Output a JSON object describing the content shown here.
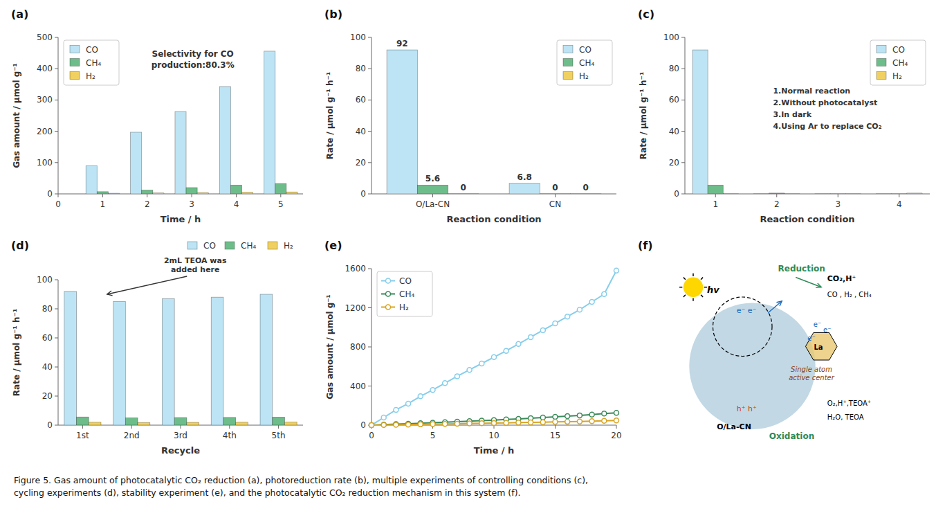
{
  "chart_data": [
    {
      "type": "bar",
      "title": "(a)",
      "xlabel": "Time / h",
      "ylabel": "Gas amount / μmol g⁻¹",
      "x": [
        1,
        2,
        3,
        4,
        5
      ],
      "xlim": [
        0,
        5.5
      ],
      "xticks": [
        0,
        1,
        2,
        3,
        4,
        5
      ],
      "ylim": [
        0,
        500
      ],
      "yticks": [
        0,
        100,
        200,
        300,
        400,
        500
      ],
      "series": [
        {
          "name": "CO",
          "color": "#BDE4F4",
          "values": [
            90,
            197,
            263,
            343,
            456
          ]
        },
        {
          "name": "CH₄",
          "color": "#6DBD8A",
          "values": [
            7,
            12,
            20,
            28,
            33
          ]
        },
        {
          "name": "H₂",
          "color": "#F0D060",
          "values": [
            2,
            3,
            4,
            5,
            6
          ]
        }
      ],
      "legend": "upper left",
      "grid": false,
      "annotations": [
        "Selectivity for CO\nproduction:80.3%"
      ]
    },
    {
      "type": "bar",
      "title": "(b)",
      "xlabel": "Reaction condition",
      "ylabel": "Rate / μmol g⁻¹ h⁻¹",
      "categories": [
        "O/La-CN",
        "CN"
      ],
      "ylim": [
        0,
        100
      ],
      "yticks": [
        0,
        20,
        40,
        60,
        80,
        100
      ],
      "series": [
        {
          "name": "CO",
          "color": "#BDE4F4",
          "values": [
            92,
            6.8
          ]
        },
        {
          "name": "CH₄",
          "color": "#6DBD8A",
          "values": [
            5.6,
            0
          ]
        },
        {
          "name": "H₂",
          "color": "#F0D060",
          "values": [
            0,
            0
          ]
        }
      ],
      "legend": "upper right",
      "grid": false,
      "data_labels": true
    },
    {
      "type": "bar",
      "title": "(c)",
      "xlabel": "Reaction condition",
      "ylabel": "Rate / μmol g⁻¹ h⁻¹",
      "categories": [
        "1",
        "2",
        "3",
        "4"
      ],
      "ylim": [
        0,
        100
      ],
      "yticks": [
        0,
        20,
        40,
        60,
        80,
        100
      ],
      "series": [
        {
          "name": "CO",
          "color": "#BDE4F4",
          "values": [
            92,
            0,
            0,
            0
          ]
        },
        {
          "name": "CH₄",
          "color": "#6DBD8A",
          "values": [
            5.6,
            0.5,
            0,
            0
          ]
        },
        {
          "name": "H₂",
          "color": "#F0D060",
          "values": [
            0,
            0,
            0,
            0.5
          ]
        }
      ],
      "legend": "upper right",
      "grid": false,
      "annotations": [
        "1.Normal reaction",
        "2.Without photocatalyst",
        "3.In dark",
        "4.Using Ar to replace CO₂"
      ]
    },
    {
      "type": "bar",
      "title": "(d)",
      "xlabel": "Recycle",
      "ylabel": "Rate / μmol g⁻¹ h⁻¹",
      "categories": [
        "1st",
        "2nd",
        "3rd",
        "4th",
        "5th"
      ],
      "ylim": [
        0,
        100
      ],
      "yticks": [
        0,
        20,
        40,
        60,
        80,
        100
      ],
      "series": [
        {
          "name": "CO",
          "color": "#BDE4F4",
          "values": [
            92,
            85,
            87,
            88,
            90
          ]
        },
        {
          "name": "CH₄",
          "color": "#6DBD8A",
          "values": [
            5.6,
            5,
            5.2,
            5.3,
            5.5
          ]
        },
        {
          "name": "H₂",
          "color": "#F0D060",
          "values": [
            2,
            1.8,
            1.9,
            2,
            2.1
          ]
        }
      ],
      "legend": "top",
      "grid": false,
      "annotations": [
        "2mL TEOA was\nadded here"
      ]
    },
    {
      "type": "line",
      "title": "(e)",
      "xlabel": "Time / h",
      "ylabel": "Gas amount / μmol g⁻¹",
      "x": [
        0,
        1,
        2,
        3,
        4,
        5,
        6,
        7,
        8,
        9,
        10,
        11,
        12,
        13,
        14,
        15,
        16,
        17,
        18,
        19,
        20
      ],
      "xlim": [
        0,
        20
      ],
      "xticks": [
        0,
        5,
        10,
        15,
        20
      ],
      "ylim": [
        0,
        1600
      ],
      "yticks": [
        0,
        400,
        800,
        1200,
        1600
      ],
      "series": [
        {
          "name": "CO",
          "color": "#87CEEB",
          "marker": "circle",
          "values": [
            0,
            78,
            156,
            220,
            295,
            360,
            430,
            500,
            565,
            630,
            695,
            760,
            830,
            900,
            970,
            1040,
            1110,
            1180,
            1260,
            1340,
            1580
          ]
        },
        {
          "name": "CH₄",
          "color": "#3A8A5A",
          "marker": "circle",
          "values": [
            0,
            5,
            10,
            15,
            20,
            25,
            30,
            35,
            40,
            46,
            52,
            58,
            64,
            70,
            78,
            85,
            92,
            100,
            108,
            118,
            125
          ]
        },
        {
          "name": "H₂",
          "color": "#DAA520",
          "marker": "circle",
          "values": [
            0,
            2,
            4,
            6,
            8,
            10,
            12,
            14,
            17,
            19,
            21,
            23,
            26,
            28,
            30,
            33,
            35,
            38,
            41,
            44,
            47
          ]
        }
      ],
      "legend": "upper left",
      "grid": false
    },
    {
      "type": "diagram",
      "title": "(f)",
      "annotations": [
        "hv",
        "e⁻ e⁻",
        "La",
        "e⁻",
        "e⁻",
        "e⁻",
        "Reduction",
        "CO₂,H⁺",
        "CO , H₂ , CH₄",
        "Single atom\nactive center",
        "O/La-CN",
        "Oxidation",
        "h⁺ h⁺",
        "O₂,H⁺,TEOA⁺",
        "H₂O, TEOA"
      ]
    }
  ],
  "caption": "Figure 5. Gas amount of photocatalytic CO₂ reduction (a), photoreduction rate (b), multiple experiments of controlling conditions (c),\ncycling experiments (d), stability experiment (e), and the photocatalytic CO₂ reduction mechanism in this system (f)."
}
